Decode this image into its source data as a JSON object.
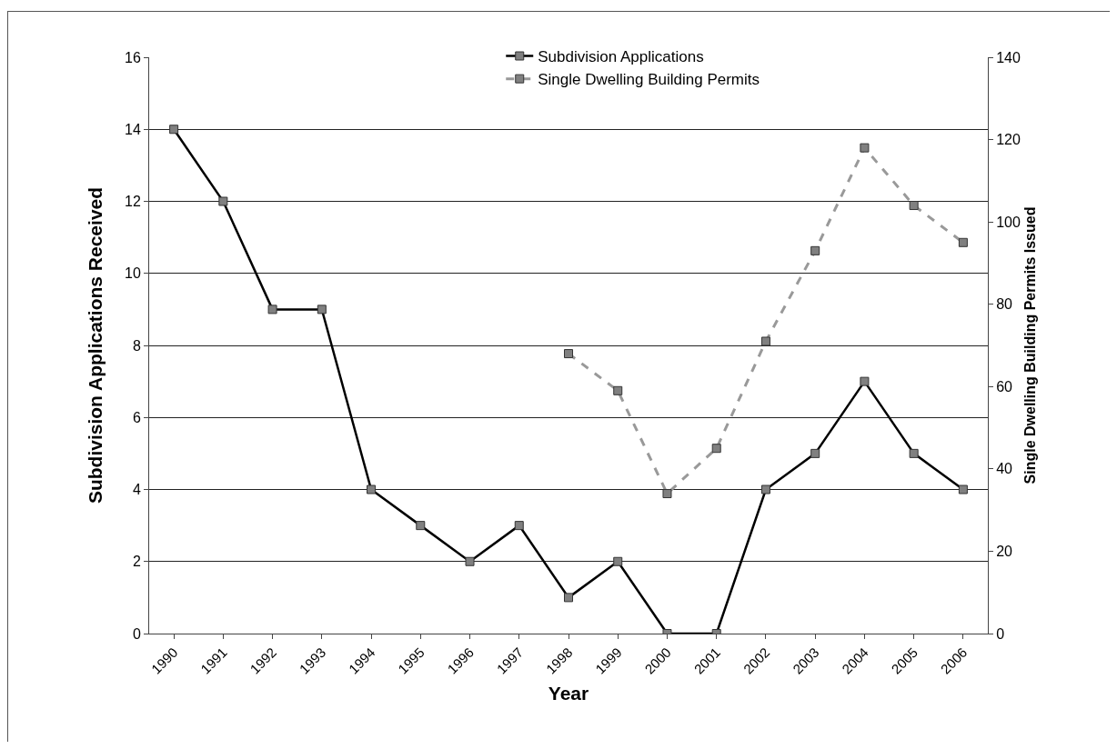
{
  "chart_data": {
    "type": "line",
    "xlabel": "Year",
    "ylabel": "Subdivision Applications Received",
    "y2label": "Single Dwelling Building Permits Issued",
    "categories": [
      "1990",
      "1991",
      "1992",
      "1993",
      "1994",
      "1995",
      "1996",
      "1997",
      "1998",
      "1999",
      "2000",
      "2001",
      "2002",
      "2003",
      "2004",
      "2005",
      "2006"
    ],
    "series": [
      {
        "name": "Subdivision Applications",
        "color": "#000000",
        "line_style": "solid",
        "values": [
          14,
          12,
          9,
          9,
          4,
          3,
          2,
          3,
          1,
          2,
          0,
          0,
          4,
          5,
          7,
          5,
          4
        ]
      },
      {
        "name": "Single Dwelling Building Permits",
        "color": "#999999",
        "line_style": "dashed",
        "axis": "y2",
        "values": [
          null,
          null,
          null,
          null,
          null,
          null,
          null,
          null,
          68,
          59,
          34,
          45,
          71,
          93,
          118,
          104,
          95
        ]
      }
    ],
    "ylim": [
      0,
      16
    ],
    "yticks": [
      0,
      2,
      4,
      6,
      8,
      10,
      12,
      14,
      16
    ],
    "y2lim": [
      0,
      140
    ],
    "y2ticks": [
      0,
      20,
      40,
      60,
      80,
      100,
      120,
      140
    ],
    "grid": "y",
    "legend": "top",
    "marker": "square"
  }
}
